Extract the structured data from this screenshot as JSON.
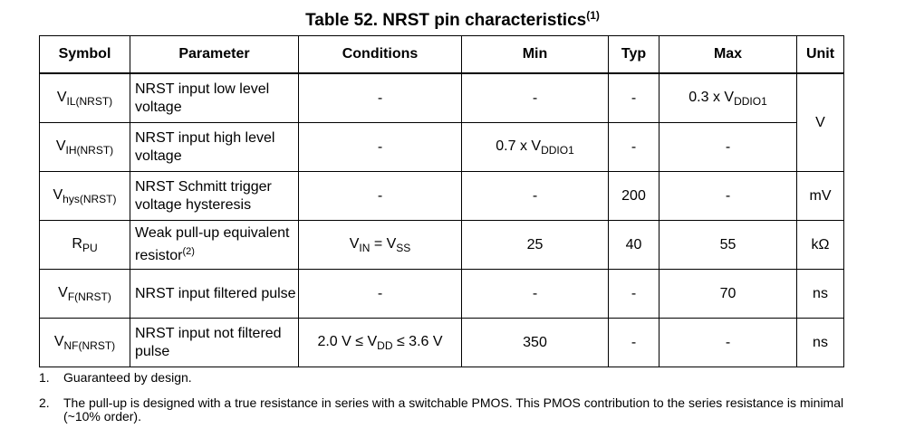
{
  "title": {
    "text": "Table 52. NRST pin characteristics",
    "footnote_ref": "(1)"
  },
  "table": {
    "headers": [
      "Symbol",
      "Parameter",
      "Conditions",
      "Min",
      "Typ",
      "Max",
      "Unit"
    ],
    "rows": [
      {
        "symbol": {
          "main": "V",
          "sub": "IL(NRST)"
        },
        "parameter": "NRST input low level voltage",
        "conditions": "-",
        "min": "-",
        "typ": "-",
        "max": {
          "text": "0.3 x V",
          "sub": "DDIO1"
        }
      },
      {
        "symbol": {
          "main": "V",
          "sub": "IH(NRST)"
        },
        "parameter": "NRST input high level voltage",
        "conditions": "-",
        "min": {
          "text": "0.7 x V",
          "sub": "DDIO1"
        },
        "typ": "-",
        "max": "-"
      },
      {
        "symbol": {
          "main": "V",
          "sub": "hys(NRST)"
        },
        "parameter": "NRST Schmitt trigger voltage hysteresis",
        "conditions": "-",
        "min": "-",
        "typ": "200",
        "max": "-",
        "unit": "mV"
      },
      {
        "symbol": {
          "main": "R",
          "sub": "PU"
        },
        "parameter": "Weak pull-up equivalent resistor",
        "parameter_footnote": "(2)",
        "conditions": {
          "a": "V",
          "a_sub": "IN",
          "op": " = ",
          "b": "V",
          "b_sub": "SS"
        },
        "min": "25",
        "typ": "40",
        "max": "55",
        "unit": "kΩ"
      },
      {
        "symbol": {
          "main": "V",
          "sub": "F(NRST)"
        },
        "parameter": "NRST input filtered pulse",
        "conditions": "-",
        "min": "-",
        "typ": "-",
        "max": "70",
        "unit": "ns"
      },
      {
        "symbol": {
          "main": "V",
          "sub": "NF(NRST)"
        },
        "parameter": "NRST input not filtered pulse",
        "conditions": {
          "pre": "2.0 V ≤ V",
          "sub": "DD",
          "post": " ≤ 3.6 V"
        },
        "min": "350",
        "typ": "-",
        "max": "-",
        "unit": "ns"
      }
    ],
    "merged_unit_rows_1_2": "V"
  },
  "footnotes": [
    {
      "num": "1.",
      "text": "Guaranteed by design."
    },
    {
      "num": "2.",
      "text": "The pull-up is designed with a true resistance in series with a switchable PMOS. This PMOS contribution to the series resistance is minimal (~10% order)."
    }
  ]
}
